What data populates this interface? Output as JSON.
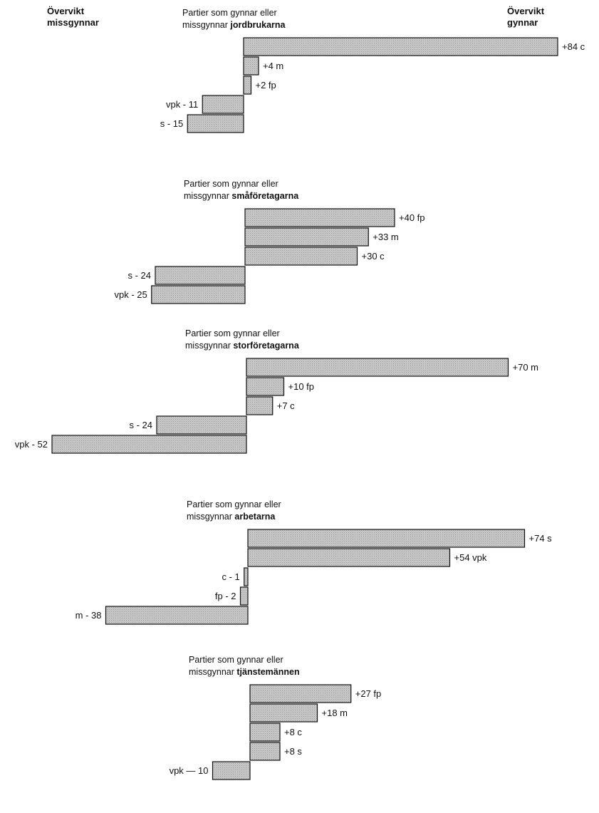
{
  "header": {
    "left": [
      "Övervikt",
      "missgynnar"
    ],
    "right": [
      "Övervikt",
      "gynnar"
    ]
  },
  "chart_data": [
    {
      "type": "bar",
      "title_prefix": "Partier som gynnar eller",
      "title_line2": "missgynnar ",
      "title_bold": "jordbrukarna",
      "bars": [
        {
          "value": 84,
          "label": "+84 c"
        },
        {
          "value": 4,
          "label": "+4 m"
        },
        {
          "value": 2,
          "label": "+2 fp"
        },
        {
          "value": -11,
          "label": "vpk - 11"
        },
        {
          "value": -15,
          "label": "s - 15"
        }
      ]
    },
    {
      "type": "bar",
      "title_prefix": "Partier som gynnar eller",
      "title_line2": "missgynnar ",
      "title_bold": "småföretagarna",
      "bars": [
        {
          "value": 40,
          "label": "+40 fp"
        },
        {
          "value": 33,
          "label": "+33 m"
        },
        {
          "value": 30,
          "label": "+30 c"
        },
        {
          "value": -24,
          "label": "s - 24"
        },
        {
          "value": -25,
          "label": "vpk - 25"
        }
      ]
    },
    {
      "type": "bar",
      "title_prefix": "Partier som gynnar eller",
      "title_line2": "missgynnar ",
      "title_bold": "storföretagarna",
      "bars": [
        {
          "value": 70,
          "label": "+70 m"
        },
        {
          "value": 10,
          "label": "+10 fp"
        },
        {
          "value": 7,
          "label": "+7 c"
        },
        {
          "value": -24,
          "label": "s - 24"
        },
        {
          "value": -52,
          "label": "vpk - 52"
        }
      ]
    },
    {
      "type": "bar",
      "title_prefix": "Partier som gynnar eller",
      "title_line2": "missgynnar ",
      "title_bold": "arbetarna",
      "bars": [
        {
          "value": 74,
          "label": "+74 s"
        },
        {
          "value": 54,
          "label": "+54 vpk"
        },
        {
          "value": -1,
          "label": "c - 1"
        },
        {
          "value": -2,
          "label": "fp - 2"
        },
        {
          "value": -38,
          "label": "m - 38"
        }
      ]
    },
    {
      "type": "bar",
      "title_prefix": "Partier som gynnar eller",
      "title_line2": "missgynnar ",
      "title_bold": "tjänstemännen",
      "bars": [
        {
          "value": 27,
          "label": "+27 fp"
        },
        {
          "value": 18,
          "label": "+18 m"
        },
        {
          "value": 8,
          "label": "+8 c"
        },
        {
          "value": 8,
          "label": "+8 s"
        },
        {
          "value": -10,
          "label": "vpk — 10"
        }
      ]
    }
  ]
}
